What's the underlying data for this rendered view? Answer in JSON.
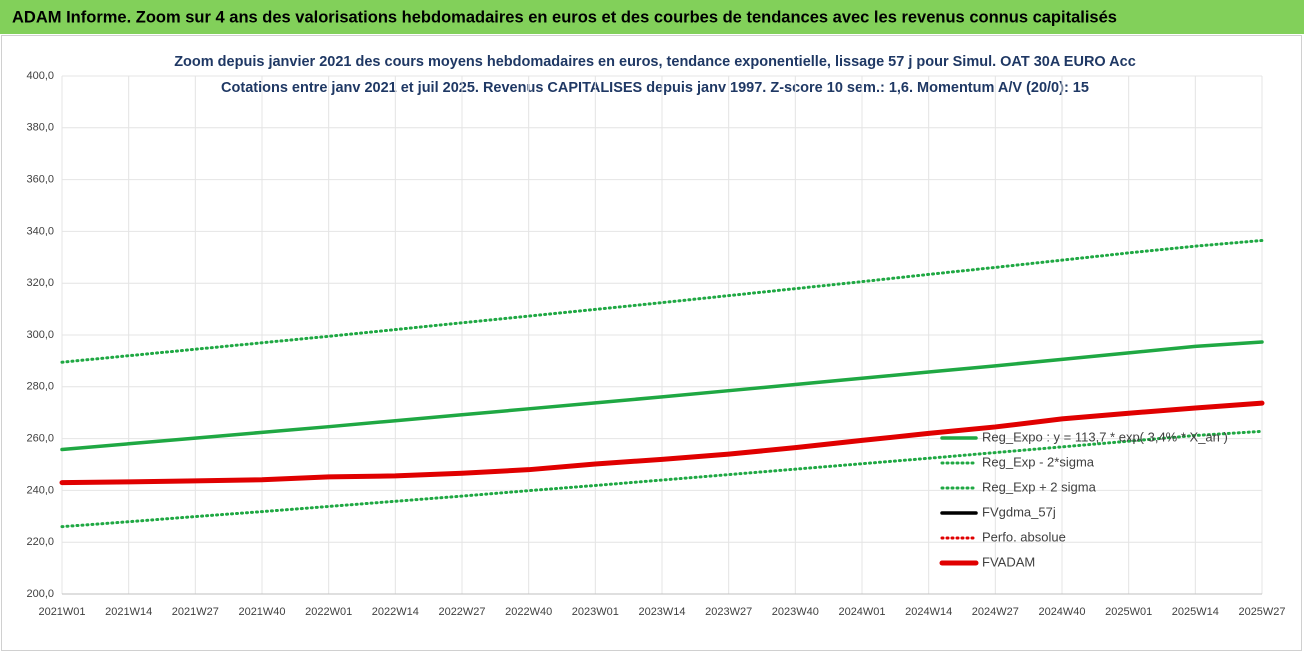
{
  "header": {
    "title": "ADAM Informe. Zoom sur 4 ans des valorisations hebdomadaires en euros et des courbes de tendances avec les revenus connus capitalisés"
  },
  "chart_data": {
    "type": "line",
    "title": "Zoom depuis janvier 2021 des cours moyens hebdomadaires en euros, tendance exponentielle, lissage 57 j pour Simul. OAT 30A EURO Acc",
    "subtitle": "Cotations entre janv 2021 et juil 2025. Revenus CAPITALISES depuis janv 1997. Z-score 10 sem.: 1,6. Momentum A/V (20/0): 15",
    "categories": [
      "2021W01",
      "2021W14",
      "2021W27",
      "2021W40",
      "2022W01",
      "2022W14",
      "2022W27",
      "2022W40",
      "2023W01",
      "2023W14",
      "2023W27",
      "2023W40",
      "2024W01",
      "2024W14",
      "2024W27",
      "2024W40",
      "2025W01",
      "2025W14",
      "2025W27"
    ],
    "ylim": [
      200,
      400
    ],
    "yticks": [
      {
        "value": 200,
        "label": "200,0"
      },
      {
        "value": 220,
        "label": "220,0"
      },
      {
        "value": 240,
        "label": "240,0"
      },
      {
        "value": 260,
        "label": "260,0"
      },
      {
        "value": 280,
        "label": "280,0"
      },
      {
        "value": 300,
        "label": "300,0"
      },
      {
        "value": 320,
        "label": "320,0"
      },
      {
        "value": 340,
        "label": "340,0"
      },
      {
        "value": 360,
        "label": "360,0"
      },
      {
        "value": 380,
        "label": "380,0"
      },
      {
        "value": 400,
        "label": "400,0"
      }
    ],
    "grid": true,
    "legend": "right",
    "series": [
      {
        "name": "Reg_Expo : y = 113,7 * exp( 3,4% * X_an )",
        "color": "#1fa843",
        "style": "solid",
        "values": [
          255.8,
          258.0,
          260.2,
          262.4,
          264.6,
          266.9,
          269.2,
          271.5,
          273.8,
          276.1,
          278.5,
          280.9,
          283.3,
          285.7,
          288.1,
          290.6,
          293.1,
          295.6,
          297.3
        ]
      },
      {
        "name": "Reg_Exp - 2*sigma",
        "color": "#1fa843",
        "style": "dotted",
        "values": [
          226.0,
          227.9,
          229.9,
          231.8,
          233.8,
          235.8,
          237.8,
          239.9,
          241.9,
          244.0,
          246.1,
          248.2,
          250.3,
          252.4,
          254.6,
          256.8,
          259.0,
          261.2,
          262.8
        ]
      },
      {
        "name": "Reg_Exp + 2 sigma",
        "color": "#1fa843",
        "style": "dotted",
        "values": [
          289.5,
          292.0,
          294.5,
          297.0,
          299.5,
          302.1,
          304.7,
          307.3,
          309.9,
          312.5,
          315.2,
          317.9,
          320.6,
          323.4,
          326.1,
          328.9,
          331.7,
          334.3,
          336.5
        ]
      },
      {
        "name": "FVgdma_57j",
        "color": "#000000",
        "style": "solid",
        "values": [
          243.0,
          243.3,
          243.7,
          244.1,
          245.2,
          245.6,
          246.6,
          248.0,
          250.2,
          252.0,
          254.0,
          256.5,
          259.3,
          262.0,
          264.5,
          267.6,
          269.8,
          271.8,
          273.7
        ]
      },
      {
        "name": "Perfo. absolue",
        "color": "#e00000",
        "style": "dotted",
        "values": [
          243.0,
          243.3,
          243.7,
          244.1,
          245.2,
          245.6,
          246.6,
          248.0,
          250.2,
          252.0,
          254.0,
          256.5,
          259.3,
          262.0,
          264.5,
          267.6,
          269.8,
          271.8,
          273.7
        ]
      },
      {
        "name": "FVADAM",
        "color": "#e00000",
        "style": "thick",
        "values": [
          243.0,
          243.3,
          243.7,
          244.1,
          245.2,
          245.6,
          246.6,
          248.0,
          250.2,
          252.0,
          254.0,
          256.5,
          259.3,
          262.0,
          264.5,
          267.6,
          269.8,
          271.8,
          273.7
        ]
      }
    ]
  }
}
